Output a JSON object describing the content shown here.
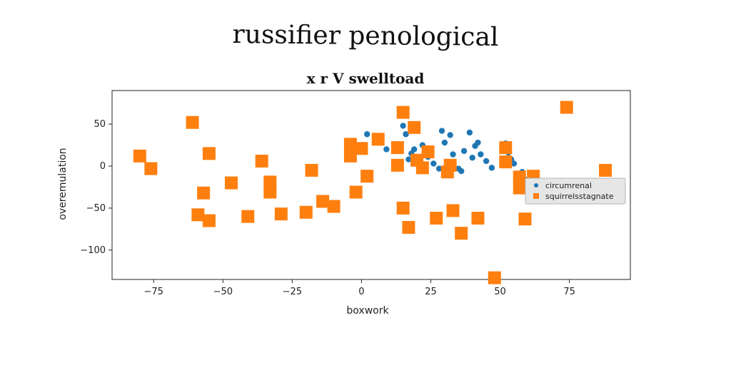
{
  "page_title": "russifier penological",
  "chart_data": {
    "type": "scatter",
    "title": "x r V swelltoad",
    "xlabel": "boxwork",
    "ylabel": "overemulation",
    "xlim": [
      -90,
      97
    ],
    "ylim": [
      -135,
      90
    ],
    "xticks": [
      -75,
      -50,
      -25,
      0,
      25,
      50,
      75
    ],
    "xtick_labels": [
      "−75",
      "−50",
      "−25",
      "0",
      "25",
      "50",
      "75"
    ],
    "yticks": [
      -100,
      -50,
      0,
      50
    ],
    "ytick_labels": [
      "−100",
      "−50",
      "0",
      "50"
    ],
    "grid": false,
    "legend_position": "center-right",
    "series": [
      {
        "name": "circumrenal",
        "color": "#1f77b4",
        "marker": "circle",
        "points": [
          [
            2,
            38
          ],
          [
            6,
            32
          ],
          [
            9,
            20
          ],
          [
            12,
            18
          ],
          [
            13,
            3
          ],
          [
            15,
            48
          ],
          [
            16,
            38
          ],
          [
            17,
            8
          ],
          [
            18,
            15
          ],
          [
            19,
            20
          ],
          [
            21,
            6
          ],
          [
            22,
            25
          ],
          [
            24,
            11
          ],
          [
            26,
            3
          ],
          [
            28,
            -3
          ],
          [
            29,
            42
          ],
          [
            30,
            28
          ],
          [
            31,
            -1
          ],
          [
            32,
            37
          ],
          [
            33,
            14
          ],
          [
            35,
            -3
          ],
          [
            36,
            -6
          ],
          [
            37,
            18
          ],
          [
            39,
            40
          ],
          [
            40,
            10
          ],
          [
            41,
            24
          ],
          [
            42,
            28
          ],
          [
            43,
            14
          ],
          [
            45,
            6
          ],
          [
            47,
            -2
          ],
          [
            52,
            27
          ],
          [
            53,
            16
          ],
          [
            54,
            8
          ],
          [
            55,
            3
          ],
          [
            58,
            -7
          ],
          [
            59,
            -16
          ]
        ]
      },
      {
        "name": "squirrelsstagnate",
        "color": "#ff7f0e",
        "marker": "square",
        "points": [
          [
            -80,
            12
          ],
          [
            -76,
            -3
          ],
          [
            -61,
            52
          ],
          [
            -57,
            -32
          ],
          [
            -59,
            -58
          ],
          [
            -55,
            15
          ],
          [
            -55,
            -65
          ],
          [
            -47,
            -20
          ],
          [
            -41,
            -60
          ],
          [
            -36,
            6
          ],
          [
            -33,
            -19
          ],
          [
            -33,
            -31
          ],
          [
            -29,
            -57
          ],
          [
            -20,
            -55
          ],
          [
            -18,
            -5
          ],
          [
            -14,
            -42
          ],
          [
            -10,
            -48
          ],
          [
            -4,
            26
          ],
          [
            -4,
            12
          ],
          [
            -2,
            -31
          ],
          [
            0,
            21
          ],
          [
            2,
            -12
          ],
          [
            6,
            32
          ],
          [
            13,
            22
          ],
          [
            13,
            1
          ],
          [
            15,
            64
          ],
          [
            15,
            -50
          ],
          [
            17,
            -73
          ],
          [
            19,
            46
          ],
          [
            20,
            7
          ],
          [
            22,
            -2
          ],
          [
            24,
            17
          ],
          [
            27,
            -62
          ],
          [
            31,
            -7
          ],
          [
            32,
            1
          ],
          [
            33,
            -53
          ],
          [
            36,
            -80
          ],
          [
            42,
            -62
          ],
          [
            48,
            -133
          ],
          [
            52,
            22
          ],
          [
            52,
            5
          ],
          [
            57,
            -13
          ],
          [
            57,
            -26
          ],
          [
            59,
            -63
          ],
          [
            62,
            -12
          ],
          [
            74,
            70
          ],
          [
            88,
            -5
          ]
        ]
      }
    ]
  }
}
